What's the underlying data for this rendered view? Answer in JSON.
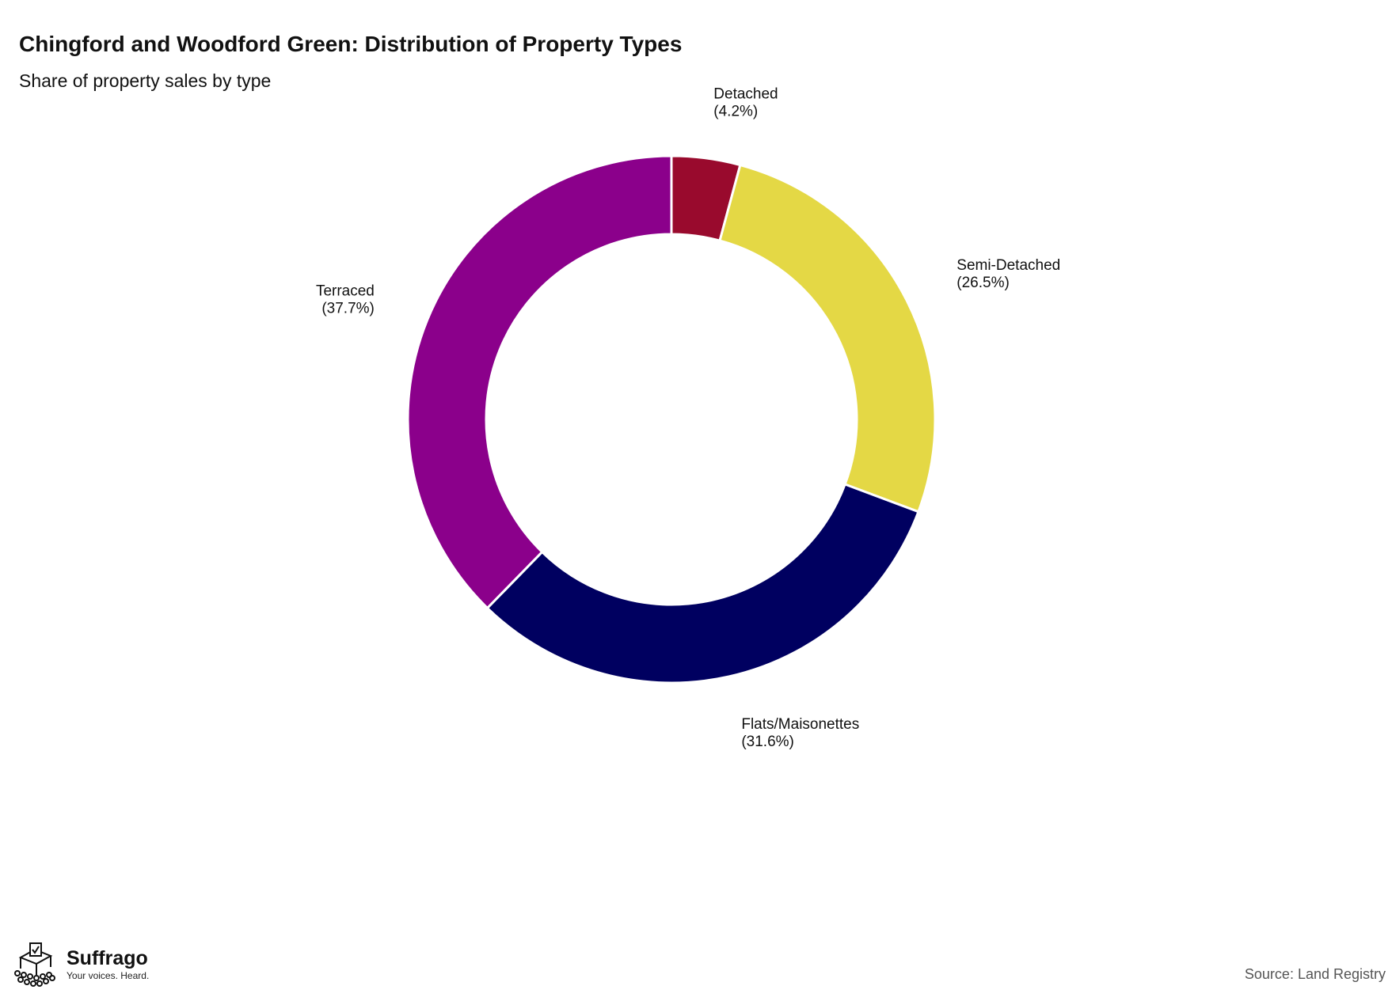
{
  "title": "Chingford and Woodford Green: Distribution of Property Types",
  "subtitle": "Share of property sales by type",
  "source": "Source: Land Registry",
  "brand": {
    "name": "Suffrago",
    "tagline": "Your voices. Heard.",
    "logo_icon": "ballot-box-crowd-icon"
  },
  "chart_data": {
    "type": "pie",
    "donut": true,
    "title": "Chingford and Woodford Green: Distribution of Property Types",
    "subtitle": "Share of property sales by type",
    "unit": "%",
    "slices": [
      {
        "label": "Detached",
        "value": 4.2,
        "display": "(4.2%)",
        "color": "#990a2d"
      },
      {
        "label": "Semi-Detached",
        "value": 26.5,
        "display": "(26.5%)",
        "color": "#e4d845"
      },
      {
        "label": "Flats/Maisonettes",
        "value": 31.6,
        "display": "(31.6%)",
        "color": "#000060"
      },
      {
        "label": "Terraced",
        "value": 37.7,
        "display": "(37.7%)",
        "color": "#8b008b"
      }
    ]
  }
}
